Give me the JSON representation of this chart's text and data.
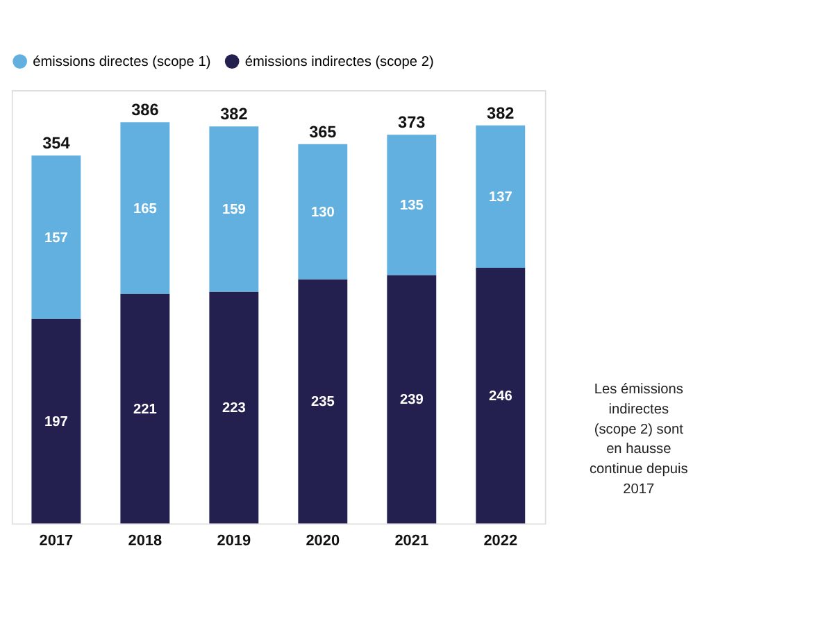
{
  "chart_data": {
    "type": "bar",
    "stacked": true,
    "categories": [
      "2017",
      "2018",
      "2019",
      "2020",
      "2021",
      "2022"
    ],
    "series": [
      {
        "name": "émissions indirectes (scope 2)",
        "color": "#23204f",
        "values": [
          197,
          221,
          223,
          235,
          239,
          246
        ]
      },
      {
        "name": "émissions directes (scope 1)",
        "color": "#62b0e0",
        "values": [
          157,
          165,
          159,
          130,
          135,
          137
        ]
      }
    ],
    "totals": [
      "354",
      "386",
      "382",
      "365",
      "373",
      "382"
    ],
    "data_labels": true,
    "legend": "top",
    "grid": false,
    "annotations": [
      "Les émissions indirectes (scope 2) sont en hausse continue depuis 2017"
    ]
  }
}
